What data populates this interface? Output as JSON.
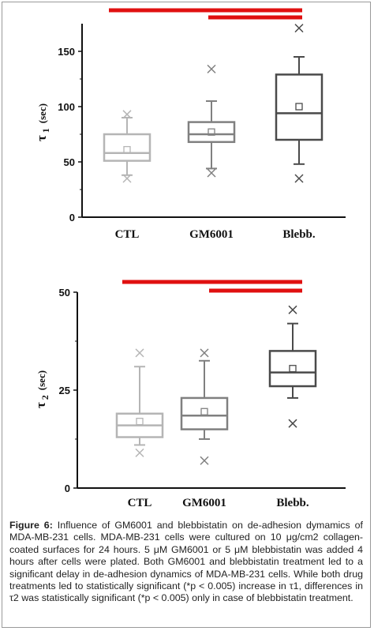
{
  "chart_data": [
    {
      "type": "box",
      "ylabel_symbol": "τ",
      "ylabel_sub": "1",
      "ylabel_unit": "(sec)",
      "ylim": [
        0,
        175
      ],
      "yticks": [
        0,
        50,
        100,
        150
      ],
      "categories": [
        "CTL",
        "GM6001",
        "Blebb."
      ],
      "boxes": [
        {
          "q1": 51,
          "median": 58,
          "q3": 75,
          "whisker_low": 38,
          "whisker_high": 90,
          "mean": 61,
          "outliers": [
            35,
            93
          ],
          "color": "#b5b5b5"
        },
        {
          "q1": 68,
          "median": 75,
          "q3": 86,
          "whisker_low": 44,
          "whisker_high": 105,
          "mean": 77,
          "outliers": [
            40,
            134
          ],
          "color": "#808080"
        },
        {
          "q1": 70,
          "median": 94,
          "q3": 129,
          "whisker_low": 48,
          "whisker_high": 145,
          "mean": 100,
          "outliers": [
            35,
            171
          ],
          "color": "#4a4a4a"
        }
      ],
      "significance_bars": [
        {
          "from": 0,
          "to": 2,
          "color": "#e01010"
        },
        {
          "from": 1,
          "to": 2,
          "color": "#e01010"
        }
      ]
    },
    {
      "type": "box",
      "ylabel_symbol": "τ",
      "ylabel_sub": "2",
      "ylabel_unit": "(sec)",
      "ylim": [
        0,
        50
      ],
      "yticks": [
        0,
        25,
        50
      ],
      "categories": [
        "CTL",
        "GM6001",
        "Blebb."
      ],
      "boxes": [
        {
          "q1": 13,
          "median": 16,
          "q3": 19,
          "whisker_low": 11,
          "whisker_high": 31,
          "mean": 17,
          "outliers": [
            9,
            34.5
          ],
          "color": "#b5b5b5"
        },
        {
          "q1": 15,
          "median": 18.5,
          "q3": 23,
          "whisker_low": 12.5,
          "whisker_high": 32.5,
          "mean": 19.5,
          "outliers": [
            7,
            34.5
          ],
          "color": "#808080"
        },
        {
          "q1": 26,
          "median": 29.5,
          "q3": 35,
          "whisker_low": 23,
          "whisker_high": 42,
          "mean": 30.5,
          "outliers": [
            16.5,
            45.5
          ],
          "color": "#4a4a4a"
        }
      ],
      "significance_bars": [
        {
          "from": 0,
          "to": 2,
          "color": "#e01010"
        },
        {
          "from": 1,
          "to": 2,
          "color": "#e01010"
        }
      ]
    }
  ],
  "caption": {
    "label": "Figure 6:",
    "text": "Influence of GM6001 and blebbistatin on de-adhesion dymamics of MDA-MB-231 cells. MDA-MB-231 cells were cultured on 10 μg/cm2 collagen-coated surfaces for 24 hours. 5 μM GM6001 or 5 μM blebbistatin was added 4 hours after cells were plated. Both GM6001 and blebbistatin treatment led to a significant delay in de-adhesion dynamics of MDA-MB-231 cells. While both drug treatments led to statistically significant (*p < 0.005) increase in τ1, differences in τ2 was statistically significant (*p < 0.005)  only in case of blebbistatin treatment."
  }
}
